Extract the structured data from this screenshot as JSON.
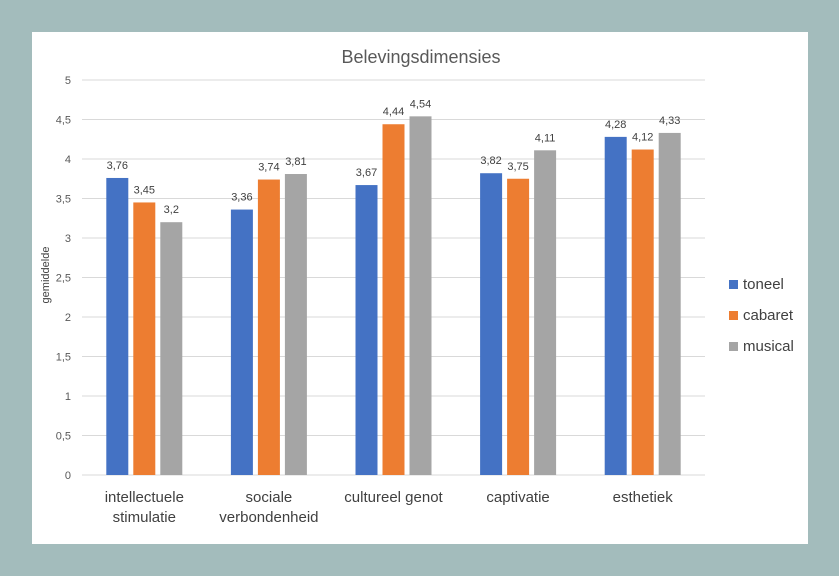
{
  "chart_data": {
    "type": "bar",
    "title": "Belevingsdimensies",
    "ylabel": "gemiddelde",
    "xlabel": "",
    "ylim": [
      0,
      5
    ],
    "yticks": [
      "0",
      "0,5",
      "1",
      "1,5",
      "2",
      "2,5",
      "3",
      "3,5",
      "4",
      "4,5",
      "5"
    ],
    "grid": true,
    "legend_position": "right",
    "categories": [
      [
        "intellectuele",
        "stimulatie"
      ],
      [
        "sociale",
        "verbondenheid"
      ],
      [
        "cultureel genot"
      ],
      [
        "captivatie"
      ],
      [
        "esthetiek"
      ]
    ],
    "series": [
      {
        "name": "toneel",
        "color": "#4472c4",
        "values": [
          3.76,
          3.36,
          3.67,
          3.82,
          4.28
        ],
        "labels": [
          "3,76",
          "3,36",
          "3,67",
          "3,82",
          "4,28"
        ]
      },
      {
        "name": "cabaret",
        "color": "#ed7d31",
        "values": [
          3.45,
          3.74,
          4.44,
          3.75,
          4.12
        ],
        "labels": [
          "3,45",
          "3,74",
          "4,44",
          "3,75",
          "4,12"
        ]
      },
      {
        "name": "musical",
        "color": "#a5a5a5",
        "values": [
          3.2,
          3.81,
          4.54,
          4.11,
          4.33
        ],
        "labels": [
          "3,2",
          "3,81",
          "4,54",
          "4,11",
          "4,33"
        ]
      }
    ]
  }
}
